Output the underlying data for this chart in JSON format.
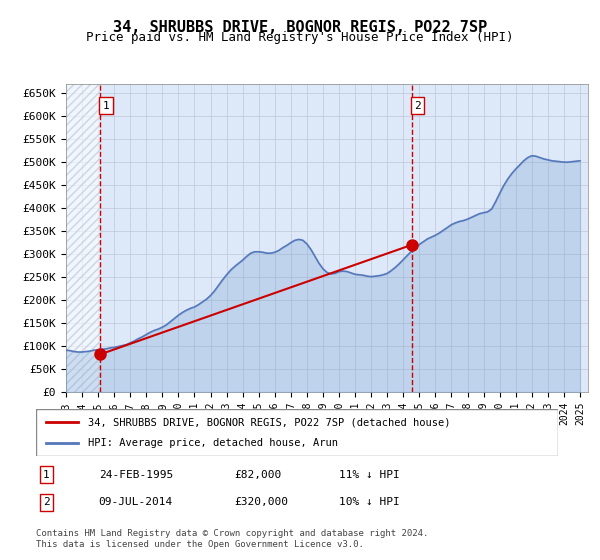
{
  "title": "34, SHRUBBS DRIVE, BOGNOR REGIS, PO22 7SP",
  "subtitle": "Price paid vs. HM Land Registry's House Price Index (HPI)",
  "ylim": [
    0,
    670000
  ],
  "yticks": [
    0,
    50000,
    100000,
    150000,
    200000,
    250000,
    300000,
    350000,
    400000,
    450000,
    500000,
    550000,
    600000,
    650000
  ],
  "ytick_labels": [
    "£0",
    "£50K",
    "£100K",
    "£150K",
    "£200K",
    "£250K",
    "£300K",
    "£350K",
    "£400K",
    "£450K",
    "£500K",
    "£550K",
    "£600K",
    "£650K"
  ],
  "xlim_start": 1993.0,
  "xlim_end": 2025.5,
  "background_color": "#dde8f8",
  "hatch_color": "#b0c0d8",
  "grid_color": "#c0c8d8",
  "transaction1_date": 1995.14,
  "transaction1_price": 82000,
  "transaction2_date": 2014.52,
  "transaction2_price": 320000,
  "sale_color": "#cc0000",
  "hpi_color": "#6699cc",
  "hpi_line_color": "#5577bb",
  "legend_label1": "34, SHRUBBS DRIVE, BOGNOR REGIS, PO22 7SP (detached house)",
  "legend_label2": "HPI: Average price, detached house, Arun",
  "table_row1": [
    "1",
    "24-FEB-1995",
    "£82,000",
    "11% ↓ HPI"
  ],
  "table_row2": [
    "2",
    "09-JUL-2014",
    "£320,000",
    "10% ↓ HPI"
  ],
  "footer": "Contains HM Land Registry data © Crown copyright and database right 2024.\nThis data is licensed under the Open Government Licence v3.0.",
  "hpi_years": [
    1993.0,
    1993.25,
    1993.5,
    1993.75,
    1994.0,
    1994.25,
    1994.5,
    1994.75,
    1995.0,
    1995.25,
    1995.5,
    1995.75,
    1996.0,
    1996.25,
    1996.5,
    1996.75,
    1997.0,
    1997.25,
    1997.5,
    1997.75,
    1998.0,
    1998.25,
    1998.5,
    1998.75,
    1999.0,
    1999.25,
    1999.5,
    1999.75,
    2000.0,
    2000.25,
    2000.5,
    2000.75,
    2001.0,
    2001.25,
    2001.5,
    2001.75,
    2002.0,
    2002.25,
    2002.5,
    2002.75,
    2003.0,
    2003.25,
    2003.5,
    2003.75,
    2004.0,
    2004.25,
    2004.5,
    2004.75,
    2005.0,
    2005.25,
    2005.5,
    2005.75,
    2006.0,
    2006.25,
    2006.5,
    2006.75,
    2007.0,
    2007.25,
    2007.5,
    2007.75,
    2008.0,
    2008.25,
    2008.5,
    2008.75,
    2009.0,
    2009.25,
    2009.5,
    2009.75,
    2010.0,
    2010.25,
    2010.5,
    2010.75,
    2011.0,
    2011.25,
    2011.5,
    2011.75,
    2012.0,
    2012.25,
    2012.5,
    2012.75,
    2013.0,
    2013.25,
    2013.5,
    2013.75,
    2014.0,
    2014.25,
    2014.5,
    2014.75,
    2015.0,
    2015.25,
    2015.5,
    2015.75,
    2016.0,
    2016.25,
    2016.5,
    2016.75,
    2017.0,
    2017.25,
    2017.5,
    2017.75,
    2018.0,
    2018.25,
    2018.5,
    2018.75,
    2019.0,
    2019.25,
    2019.5,
    2019.75,
    2020.0,
    2020.25,
    2020.5,
    2020.75,
    2021.0,
    2021.25,
    2021.5,
    2021.75,
    2022.0,
    2022.25,
    2022.5,
    2022.75,
    2023.0,
    2023.25,
    2023.5,
    2023.75,
    2024.0,
    2024.25,
    2024.5,
    2024.75,
    2025.0
  ],
  "hpi_values": [
    91000,
    90000,
    88000,
    87000,
    87000,
    88000,
    89000,
    91000,
    92000,
    93000,
    94000,
    96000,
    97000,
    99000,
    101000,
    103000,
    107000,
    111000,
    116000,
    120000,
    125000,
    130000,
    134000,
    137000,
    141000,
    146000,
    153000,
    160000,
    167000,
    173000,
    178000,
    182000,
    185000,
    190000,
    196000,
    202000,
    210000,
    220000,
    232000,
    244000,
    255000,
    265000,
    273000,
    280000,
    287000,
    295000,
    302000,
    305000,
    305000,
    304000,
    302000,
    302000,
    304000,
    308000,
    314000,
    319000,
    325000,
    330000,
    332000,
    330000,
    322000,
    310000,
    295000,
    280000,
    268000,
    260000,
    257000,
    258000,
    262000,
    263000,
    262000,
    259000,
    256000,
    255000,
    254000,
    252000,
    251000,
    252000,
    253000,
    255000,
    258000,
    264000,
    271000,
    279000,
    288000,
    297000,
    306000,
    314000,
    321000,
    327000,
    333000,
    337000,
    341000,
    346000,
    352000,
    358000,
    364000,
    368000,
    371000,
    373000,
    376000,
    380000,
    384000,
    388000,
    390000,
    392000,
    398000,
    414000,
    432000,
    449000,
    463000,
    475000,
    485000,
    494000,
    503000,
    510000,
    514000,
    513000,
    510000,
    507000,
    505000,
    503000,
    502000,
    501000,
    500000,
    500000,
    501000,
    502000,
    503000
  ]
}
